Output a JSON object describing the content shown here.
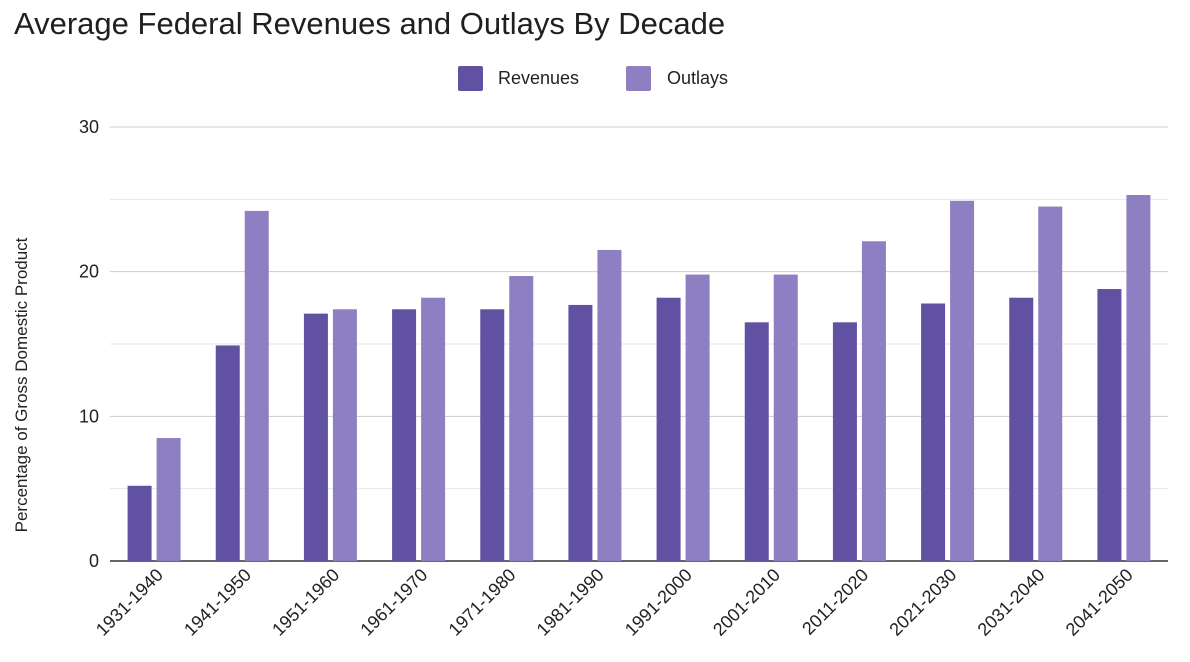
{
  "chart_data": {
    "type": "bar",
    "title": "Average Federal Revenues and Outlays By Decade",
    "xlabel": "",
    "ylabel": "Percentage of Gross Domestic Product",
    "ylim": [
      0,
      30
    ],
    "yticks": [
      0,
      10,
      20,
      30
    ],
    "grid": true,
    "legend_position": "top-center",
    "categories": [
      "1931-1940",
      "1941-1950",
      "1951-1960",
      "1961-1970",
      "1971-1980",
      "1981-1990",
      "1991-2000",
      "2001-2010",
      "2011-2020",
      "2021-2030",
      "2031-2040",
      "2041-2050"
    ],
    "series": [
      {
        "name": "Revenues",
        "color": "#6151a3",
        "values": [
          5.2,
          14.9,
          17.1,
          17.4,
          17.4,
          17.7,
          18.2,
          16.5,
          16.5,
          17.8,
          18.2,
          18.8
        ]
      },
      {
        "name": "Outlays",
        "color": "#8e7fc2",
        "values": [
          8.5,
          24.2,
          17.4,
          18.2,
          19.7,
          21.5,
          19.8,
          19.8,
          22.1,
          24.9,
          24.5,
          25.3
        ]
      }
    ]
  }
}
